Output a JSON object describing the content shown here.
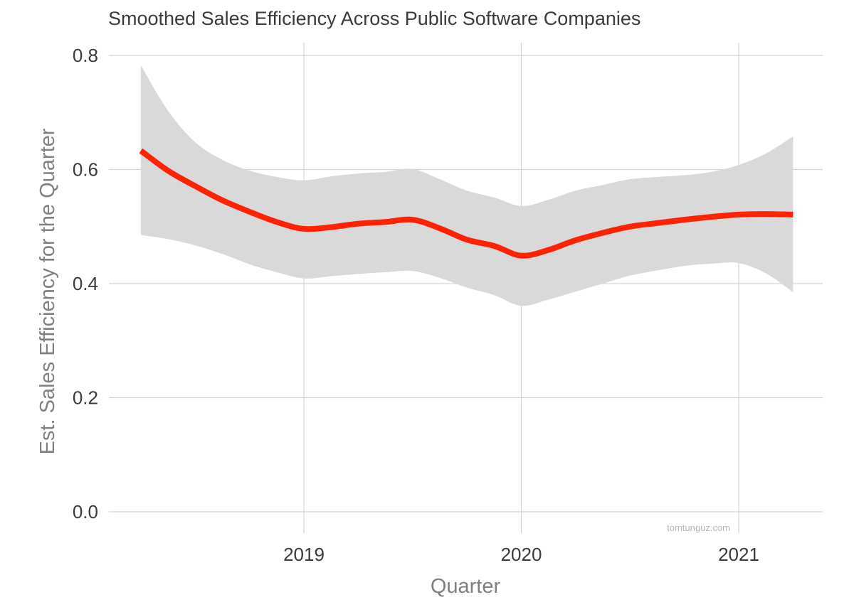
{
  "chart_data": {
    "type": "line",
    "title": "Smoothed Sales Efficiency Across Public Software Companies",
    "xlabel": "Quarter",
    "ylabel": "Est. Sales Efficiency for the Quarter",
    "xlim": [
      2018.1,
      2021.4
    ],
    "ylim": [
      0.0,
      0.8
    ],
    "grid": true,
    "x_ticks": [
      {
        "value": 2019,
        "label": "2019"
      },
      {
        "value": 2020,
        "label": "2020"
      },
      {
        "value": 2021,
        "label": "2021"
      }
    ],
    "y_ticks": [
      {
        "value": 0.0,
        "label": "0.0"
      },
      {
        "value": 0.2,
        "label": "0.2"
      },
      {
        "value": 0.4,
        "label": "0.4"
      },
      {
        "value": 0.6,
        "label": "0.6"
      },
      {
        "value": 0.8,
        "label": "0.8"
      }
    ],
    "x": [
      2018.25,
      2018.375,
      2018.5,
      2018.625,
      2018.75,
      2018.875,
      2019.0,
      2019.125,
      2019.25,
      2019.375,
      2019.5,
      2019.625,
      2019.75,
      2019.875,
      2020.0,
      2020.125,
      2020.25,
      2020.375,
      2020.5,
      2020.625,
      2020.75,
      2020.875,
      2021.0,
      2021.125,
      2021.25
    ],
    "series": [
      {
        "name": "Smoothed sales efficiency",
        "color": "#ff2200",
        "values": [
          0.633,
          0.598,
          0.571,
          0.546,
          0.526,
          0.508,
          0.496,
          0.499,
          0.505,
          0.508,
          0.512,
          0.497,
          0.477,
          0.466,
          0.449,
          0.459,
          0.476,
          0.489,
          0.5,
          0.506,
          0.512,
          0.517,
          0.521,
          0.522,
          0.521
        ]
      }
    ],
    "confidence_band": {
      "name": "Confidence interval",
      "color": "#d9d9d9",
      "upper": [
        0.783,
        0.703,
        0.648,
        0.617,
        0.598,
        0.587,
        0.581,
        0.588,
        0.593,
        0.596,
        0.601,
        0.583,
        0.563,
        0.551,
        0.536,
        0.547,
        0.563,
        0.573,
        0.583,
        0.587,
        0.59,
        0.596,
        0.608,
        0.628,
        0.658
      ],
      "lower": [
        0.485,
        0.478,
        0.467,
        0.452,
        0.434,
        0.42,
        0.409,
        0.413,
        0.417,
        0.42,
        0.422,
        0.41,
        0.393,
        0.38,
        0.361,
        0.372,
        0.386,
        0.4,
        0.414,
        0.423,
        0.431,
        0.435,
        0.436,
        0.418,
        0.385
      ]
    },
    "watermark": "tomtunguz.com"
  }
}
